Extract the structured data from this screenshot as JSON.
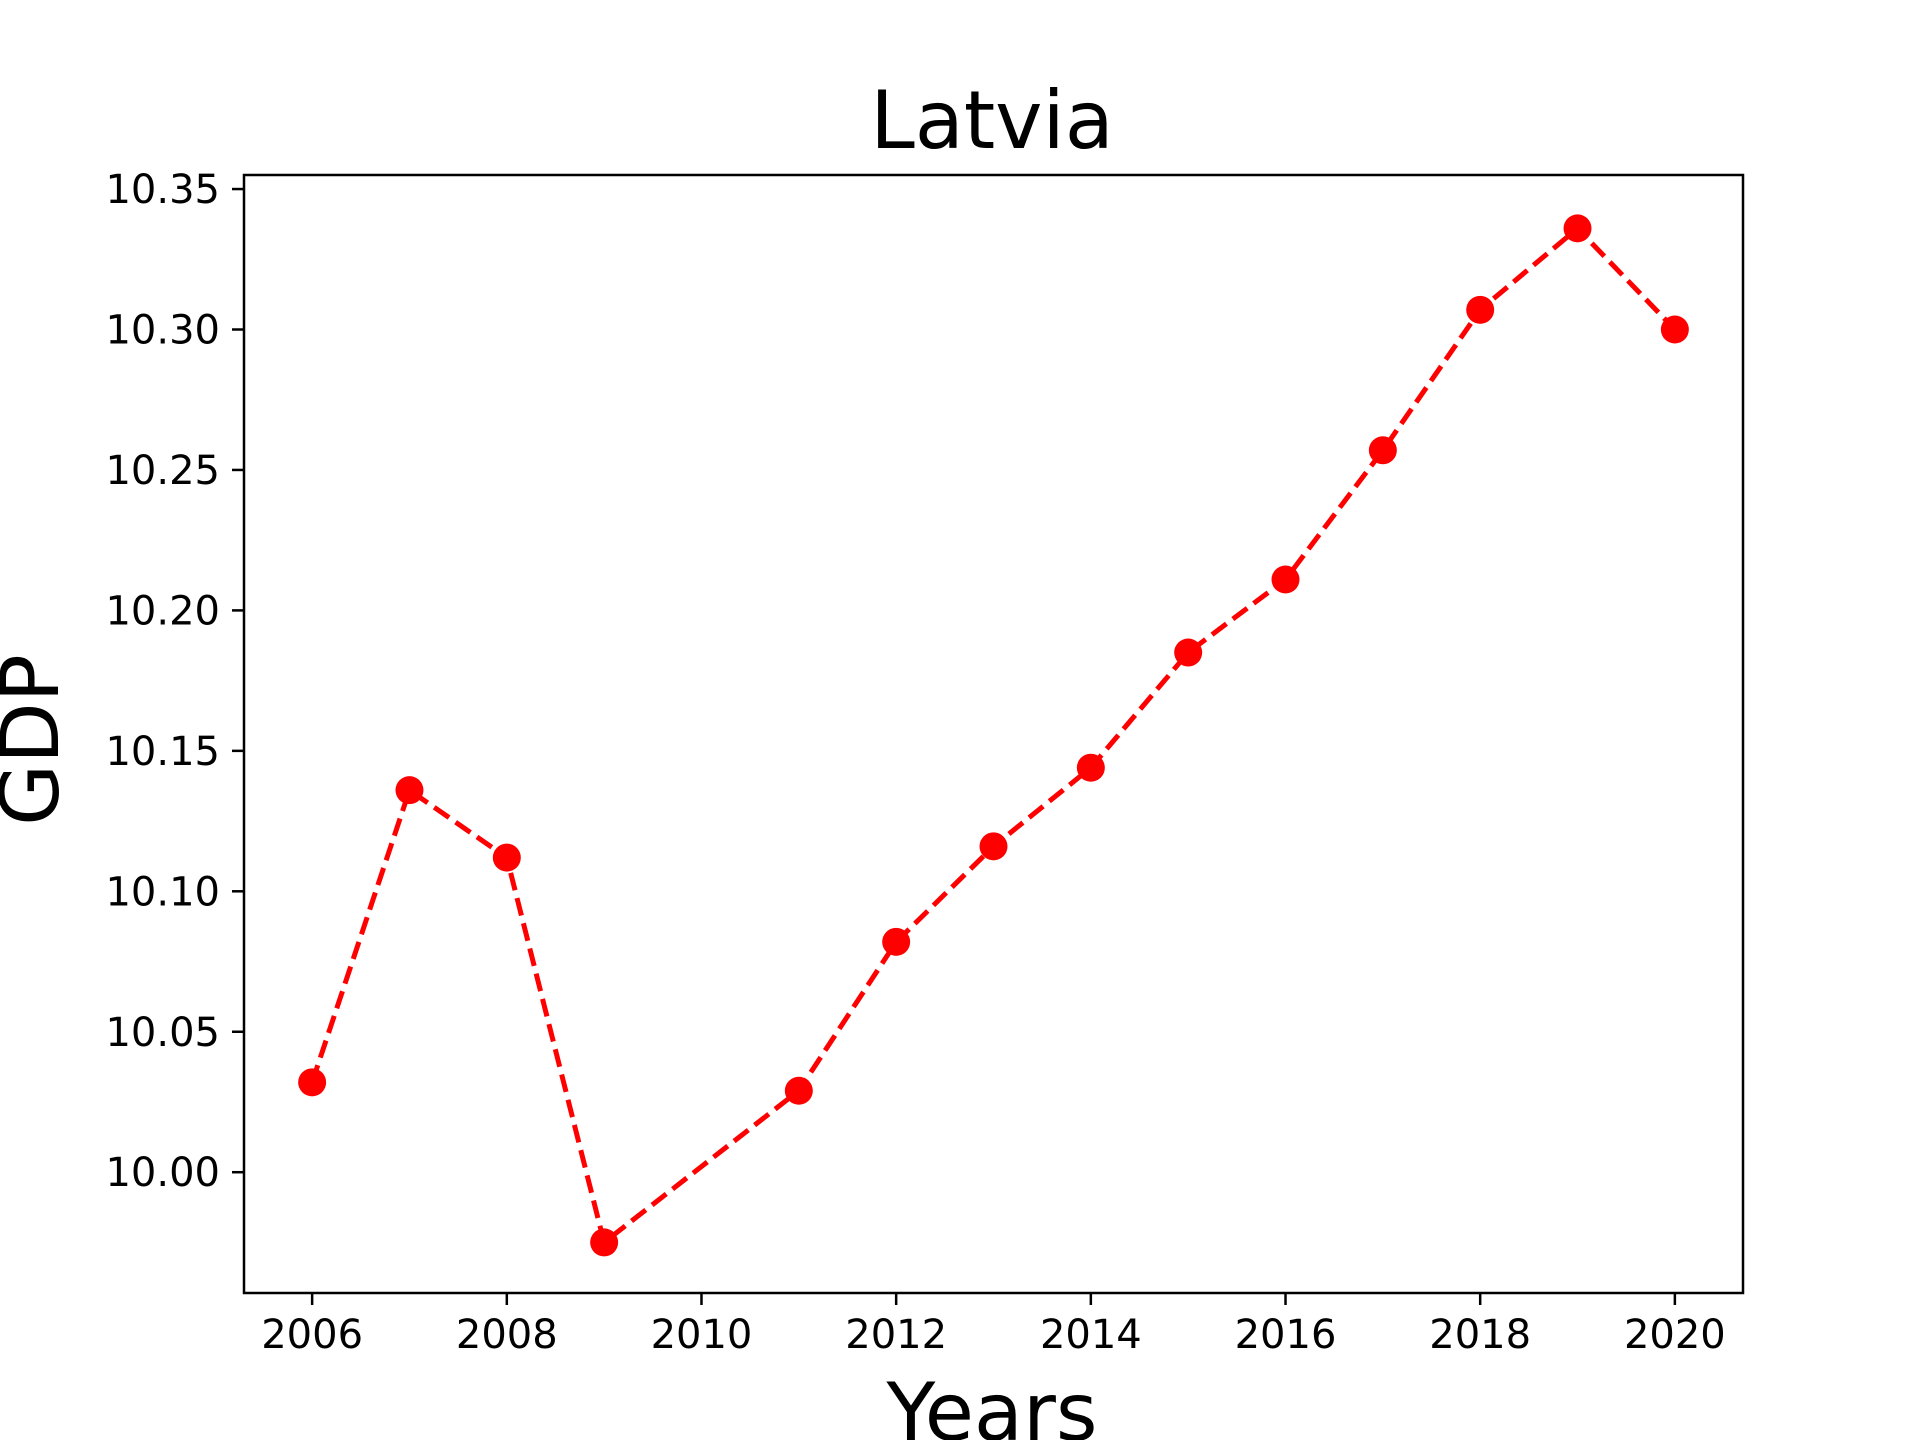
{
  "chart_data": {
    "type": "line",
    "title": "Latvia",
    "xlabel": "Years",
    "ylabel": "GDP",
    "x": [
      2006,
      2007,
      2008,
      2009,
      2011,
      2012,
      2013,
      2014,
      2015,
      2016,
      2017,
      2018,
      2019,
      2020
    ],
    "series": [
      {
        "values": [
          10.032,
          10.136,
          10.112,
          9.975,
          10.029,
          10.082,
          10.116,
          10.144,
          10.185,
          10.211,
          10.257,
          10.307,
          10.336,
          10.3
        ],
        "color": "#ff0000",
        "line_style": "dashed",
        "marker": "circle"
      }
    ],
    "xlim": [
      2005.3,
      2020.7
    ],
    "ylim": [
      9.957,
      10.355
    ],
    "xticks": [
      "2006",
      "2008",
      "2010",
      "2012",
      "2014",
      "2016",
      "2018",
      "2020"
    ],
    "yticks": [
      "10.00",
      "10.05",
      "10.10",
      "10.15",
      "10.20",
      "10.25",
      "10.30",
      "10.35"
    ],
    "grid": false,
    "legend": "none"
  }
}
